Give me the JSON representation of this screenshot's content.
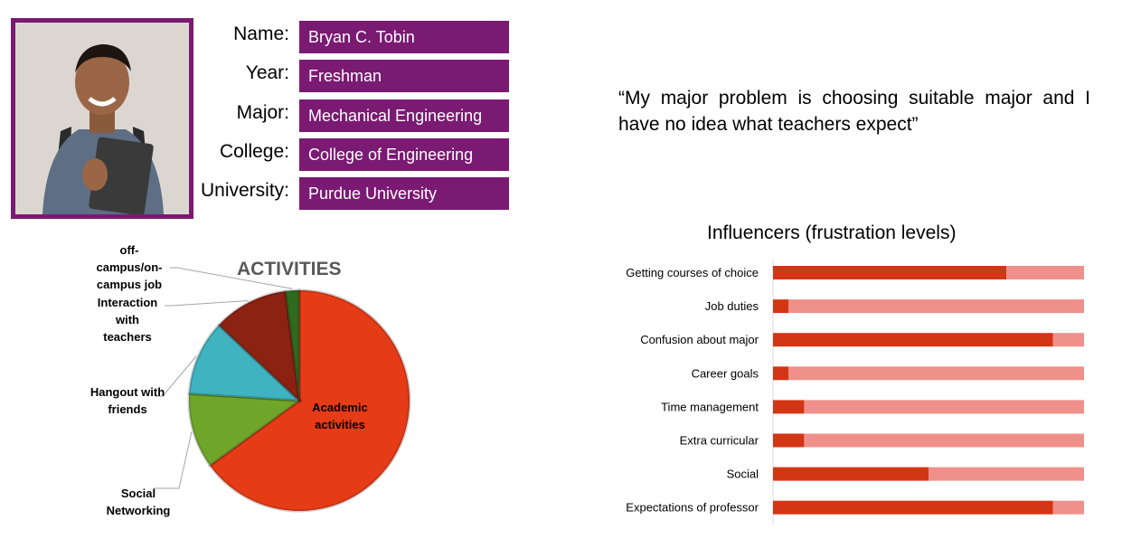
{
  "profile": {
    "fields": [
      {
        "label": "Name:",
        "value": "Bryan C. Tobin"
      },
      {
        "label": "Year:",
        "value": "Freshman"
      },
      {
        "label": "Major:",
        "value": "Mechanical Engineering"
      },
      {
        "label": "College:",
        "value": "College of Engineering"
      },
      {
        "label": "University:",
        "value": "Purdue University"
      }
    ]
  },
  "quote": "“My major problem is choosing suitable major and I have no idea what teachers expect”",
  "chart_data": [
    {
      "type": "pie",
      "title": "ACTIVITIES",
      "slices": [
        {
          "label": "Academic activities",
          "value": 65,
          "color": "#e53b16"
        },
        {
          "label": "Social Networking",
          "value": 11,
          "color": "#6fa62a"
        },
        {
          "label": "Hangout with friends",
          "value": 11,
          "color": "#3fb3c0"
        },
        {
          "label": "Interaction with teachers",
          "value": 11,
          "color": "#8b2212"
        },
        {
          "label": "off-campus/on-campus job",
          "value": 2,
          "color": "#2e6b1e"
        }
      ]
    },
    {
      "type": "bar",
      "title": "Influencers (frustration levels)",
      "orientation": "horizontal",
      "stacked": true,
      "categories": [
        "Getting courses of choice",
        "Job duties",
        "Confusion about major",
        "Career goals",
        "Time management",
        "Extra curricular",
        "Social",
        "Expectations of professor"
      ],
      "values": [
        75,
        5,
        90,
        5,
        10,
        10,
        50,
        90
      ],
      "max": 100,
      "colors": {
        "level": "#d33615",
        "remainder": "#f0908a"
      }
    }
  ]
}
